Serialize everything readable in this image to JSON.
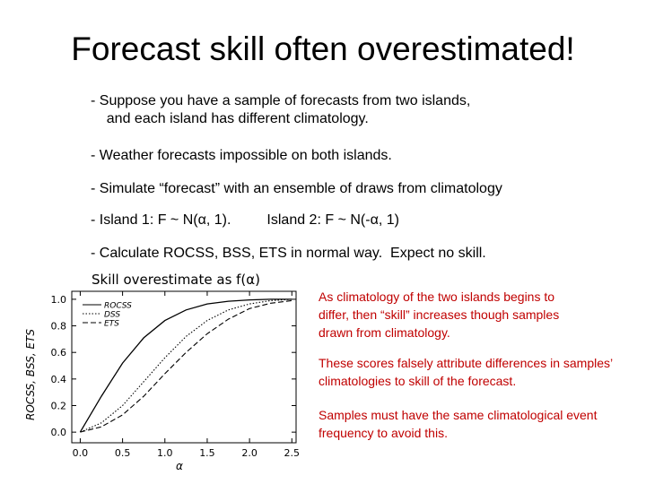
{
  "slide": {
    "title": "Forecast skill often overestimated!",
    "bullets": [
      "- Suppose you have a sample of forecasts from two islands,",
      "    and each island has different climatology.",
      "- Weather forecasts impossible on both islands.",
      "- Simulate “forecast” with an ensemble of draws from climatology",
      "- Island 1: F ~ N(α, 1).         Island 2: F ~ N(-α, 1)",
      "- Calculate ROCSS, BSS, ETS in normal way.  Expect no skill."
    ],
    "notes": [
      "As climatology of the two islands begins to differ, then “skill” increases though samples drawn from climatology.",
      "These scores falsely attribute differences in samples’ climatologies to skill of the forecast.",
      "Samples must have the same climatological event frequency to avoid this."
    ],
    "note_color": "#c00000"
  },
  "chart_data": {
    "type": "line",
    "title": "Skill  overestimate  as  f(α)",
    "xlabel": "α",
    "ylabel": "ROCSS,  BSS,  ETS",
    "xlim": [
      -0.1,
      2.55
    ],
    "ylim": [
      -0.08,
      1.06
    ],
    "xticks": [
      "0.0",
      "0.5",
      "1.0",
      "1.5",
      "2.0",
      "2.5"
    ],
    "yticks": [
      "0.0",
      "0.2",
      "0.4",
      "0.6",
      "0.8",
      "1.0"
    ],
    "legend_placement": "top-left",
    "x": [
      0.0,
      0.25,
      0.5,
      0.75,
      1.0,
      1.25,
      1.5,
      1.75,
      2.0,
      2.25,
      2.5
    ],
    "series": [
      {
        "name": "ROCSS",
        "style": "solid",
        "values": [
          0.0,
          0.27,
          0.52,
          0.71,
          0.84,
          0.92,
          0.965,
          0.985,
          0.995,
          1.0,
          1.0
        ]
      },
      {
        "name": "DSS",
        "style": "dotted",
        "values": [
          0.0,
          0.07,
          0.2,
          0.38,
          0.56,
          0.72,
          0.84,
          0.92,
          0.965,
          0.99,
          1.0
        ]
      },
      {
        "name": "ETS",
        "style": "dashed",
        "values": [
          0.0,
          0.04,
          0.13,
          0.27,
          0.44,
          0.6,
          0.74,
          0.85,
          0.93,
          0.97,
          0.99
        ]
      }
    ]
  }
}
